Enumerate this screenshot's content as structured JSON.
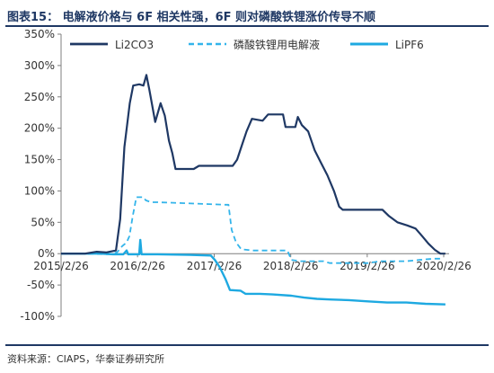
{
  "header": {
    "title": "图表15： 电解液价格与 6F 相关性强，6F 则对磷酸铁锂涨价传导不顺"
  },
  "footer": {
    "source": "资料来源：CIAPS，华泰证券研究所"
  },
  "chart_data": {
    "type": "line",
    "title": "",
    "xlabel": "",
    "ylabel": "",
    "ylim": [
      -100,
      350
    ],
    "yticks": [
      -100,
      -50,
      0,
      50,
      100,
      150,
      200,
      250,
      300,
      350
    ],
    "ytick_labels": [
      "-100%",
      "-50%",
      "0%",
      "50%",
      "100%",
      "150%",
      "200%",
      "250%",
      "300%",
      "350%"
    ],
    "xlim": [
      "2015-02-26",
      "2020-03-10"
    ],
    "xticks": [
      "2015-02-26",
      "2016-02-26",
      "2017-02-26",
      "2018-02-26",
      "2019-02-26",
      "2020-02-26"
    ],
    "xtick_labels": [
      "2015/2/26",
      "2016/2/26",
      "2017/2/26",
      "2018/2/26",
      "2019/2/26",
      "2020/2/26"
    ],
    "legend_position": "top",
    "grid": false,
    "colors": {
      "li2co3": "#1f3864",
      "electrolyte": "#33b4ea",
      "lipf6": "#1ea9e1",
      "axis": "#7f7f7f",
      "text": "#333333",
      "rule": "#1f3864"
    },
    "series": [
      {
        "name": "Li2CO3",
        "style": "solid",
        "points": [
          [
            "2015-02-26",
            0
          ],
          [
            "2015-06-20",
            0
          ],
          [
            "2015-08-15",
            3
          ],
          [
            "2015-10-01",
            2
          ],
          [
            "2015-11-15",
            5
          ],
          [
            "2015-12-05",
            55
          ],
          [
            "2015-12-25",
            170
          ],
          [
            "2016-01-20",
            240
          ],
          [
            "2016-02-05",
            268
          ],
          [
            "2016-03-05",
            270
          ],
          [
            "2016-03-25",
            268
          ],
          [
            "2016-04-08",
            285
          ],
          [
            "2016-04-22",
            262
          ],
          [
            "2016-05-20",
            210
          ],
          [
            "2016-06-15",
            240
          ],
          [
            "2016-07-05",
            220
          ],
          [
            "2016-07-25",
            180
          ],
          [
            "2016-08-10",
            160
          ],
          [
            "2016-08-25",
            135
          ],
          [
            "2016-11-20",
            135
          ],
          [
            "2016-12-15",
            140
          ],
          [
            "2017-05-25",
            140
          ],
          [
            "2017-06-15",
            150
          ],
          [
            "2017-07-10",
            175
          ],
          [
            "2017-07-30",
            195
          ],
          [
            "2017-08-25",
            215
          ],
          [
            "2017-10-15",
            212
          ],
          [
            "2017-11-10",
            222
          ],
          [
            "2018-01-20",
            222
          ],
          [
            "2018-02-01",
            202
          ],
          [
            "2018-03-20",
            202
          ],
          [
            "2018-04-01",
            218
          ],
          [
            "2018-04-20",
            205
          ],
          [
            "2018-05-20",
            195
          ],
          [
            "2018-06-20",
            165
          ],
          [
            "2018-07-20",
            145
          ],
          [
            "2018-08-20",
            125
          ],
          [
            "2018-09-20",
            100
          ],
          [
            "2018-10-15",
            75
          ],
          [
            "2018-11-01",
            70
          ],
          [
            "2019-05-10",
            70
          ],
          [
            "2019-06-10",
            60
          ],
          [
            "2019-07-20",
            50
          ],
          [
            "2019-09-05",
            45
          ],
          [
            "2019-10-15",
            40
          ],
          [
            "2019-11-15",
            28
          ],
          [
            "2019-12-15",
            16
          ],
          [
            "2020-01-15",
            6
          ],
          [
            "2020-02-10",
            0
          ],
          [
            "2020-03-05",
            0
          ]
        ]
      },
      {
        "name": "磷酸铁锂用电解液",
        "style": "dashed",
        "points": [
          [
            "2015-02-26",
            0
          ],
          [
            "2015-06-01",
            0
          ],
          [
            "2015-10-15",
            -1
          ],
          [
            "2015-11-20",
            2
          ],
          [
            "2015-12-15",
            12
          ],
          [
            "2016-01-05",
            18
          ],
          [
            "2016-01-18",
            28
          ],
          [
            "2016-02-03",
            60
          ],
          [
            "2016-02-20",
            90
          ],
          [
            "2016-03-25",
            90
          ],
          [
            "2016-04-05",
            85
          ],
          [
            "2016-05-01",
            82
          ],
          [
            "2016-06-01",
            82
          ],
          [
            "2017-04-20",
            78
          ],
          [
            "2017-05-05",
            78
          ],
          [
            "2017-05-20",
            38
          ],
          [
            "2017-06-10",
            18
          ],
          [
            "2017-07-05",
            7
          ],
          [
            "2017-09-01",
            5
          ],
          [
            "2018-02-10",
            5
          ],
          [
            "2018-03-01",
            -10
          ],
          [
            "2018-04-15",
            -12
          ],
          [
            "2018-08-01",
            -12
          ],
          [
            "2018-09-01",
            -15
          ],
          [
            "2019-03-01",
            -15
          ],
          [
            "2019-05-01",
            -12
          ],
          [
            "2019-09-01",
            -12
          ],
          [
            "2019-11-01",
            -10
          ],
          [
            "2020-01-10",
            -8
          ],
          [
            "2020-02-25",
            -8
          ]
        ]
      },
      {
        "name": "LiPF6",
        "style": "solid",
        "points": [
          [
            "2015-02-26",
            0
          ],
          [
            "2015-09-01",
            0
          ],
          [
            "2015-11-01",
            -1
          ],
          [
            "2015-12-20",
            -1
          ],
          [
            "2016-01-05",
            5
          ],
          [
            "2016-01-12",
            -1
          ],
          [
            "2016-03-05",
            -1
          ],
          [
            "2016-03-10",
            22
          ],
          [
            "2016-03-16",
            -1
          ],
          [
            "2016-06-01",
            -1
          ],
          [
            "2016-11-01",
            -2
          ],
          [
            "2017-02-10",
            -3
          ],
          [
            "2017-03-01",
            -10
          ],
          [
            "2017-03-25",
            -22
          ],
          [
            "2017-04-20",
            -40
          ],
          [
            "2017-05-12",
            -58
          ],
          [
            "2017-07-01",
            -59
          ],
          [
            "2017-07-25",
            -64
          ],
          [
            "2017-10-01",
            -64
          ],
          [
            "2017-12-01",
            -65
          ],
          [
            "2018-03-01",
            -67
          ],
          [
            "2018-05-01",
            -70
          ],
          [
            "2018-07-01",
            -72
          ],
          [
            "2018-09-01",
            -73
          ],
          [
            "2018-12-01",
            -74
          ],
          [
            "2019-03-01",
            -76
          ],
          [
            "2019-06-01",
            -78
          ],
          [
            "2019-09-01",
            -78
          ],
          [
            "2019-12-01",
            -80
          ],
          [
            "2020-03-05",
            -81
          ]
        ]
      }
    ]
  }
}
